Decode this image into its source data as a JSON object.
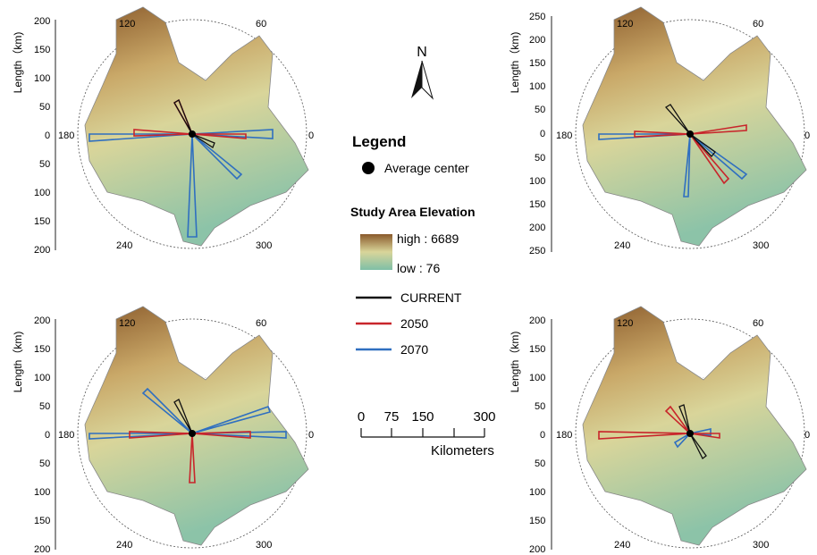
{
  "axis_label": "Length（km)",
  "angle_labels": [
    "120",
    "60",
    "180",
    "0",
    "240",
    "300"
  ],
  "panels": [
    {
      "id": "p1",
      "ticks": [
        "200",
        "150",
        "100",
        "50",
        "0",
        "50",
        "100",
        "150",
        "200"
      ]
    },
    {
      "id": "p2",
      "ticks": [
        "250",
        "200",
        "150",
        "100",
        "50",
        "0",
        "50",
        "100",
        "150",
        "200",
        "250"
      ]
    },
    {
      "id": "p3",
      "ticks": [
        "200",
        "150",
        "100",
        "50",
        "0",
        "50",
        "100",
        "150",
        "200"
      ]
    },
    {
      "id": "p4",
      "ticks": [
        "200",
        "150",
        "100",
        "50",
        "0",
        "50",
        "100",
        "150",
        "200"
      ]
    }
  ],
  "north_label": "N",
  "legend": {
    "title": "Legend",
    "center_label": "Average center",
    "elevation_title": "Study Area Elevation",
    "high_label": "high : 6689",
    "low_label": "low : 76",
    "series": [
      {
        "label": "CURRENT",
        "color": "#111111"
      },
      {
        "label": "2050",
        "color": "#c8252b"
      },
      {
        "label": "2070",
        "color": "#2f6fc0"
      }
    ]
  },
  "scale_bar": {
    "ticks": [
      "0",
      "75",
      "150",
      "300"
    ],
    "unit": "Kilometers"
  },
  "colors": {
    "elev_high": "#8a5a2b",
    "elev_mid": "#d9cf8f",
    "elev_low": "#7fbfa6",
    "current": "#111111",
    "y2050": "#c8252b",
    "y2070": "#2f6fc0"
  }
}
